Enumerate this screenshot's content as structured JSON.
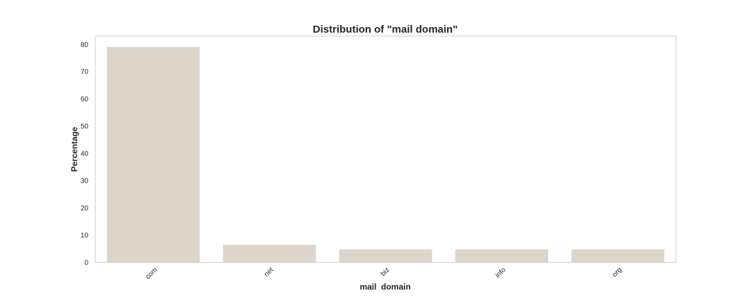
{
  "chart_data": {
    "type": "bar",
    "title": "Distribution of \"mail domain\"",
    "xlabel": "mail  domain",
    "ylabel": "Percentage",
    "categories": [
      "com",
      "net",
      "biz",
      "info",
      "org"
    ],
    "values": [
      79.0,
      6.5,
      4.8,
      4.8,
      4.8
    ],
    "ylim": [
      0,
      83
    ],
    "yticks": [
      0,
      10,
      20,
      30,
      40,
      50,
      60,
      70,
      80
    ],
    "grid": false,
    "bar_color": "#ddd5ca",
    "frame_color": "#cccccc"
  }
}
